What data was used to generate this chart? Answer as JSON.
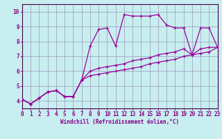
{
  "xlabel": "Windchill (Refroidissement éolien,°C)",
  "bg_color": "#c8eef0",
  "line_color": "#990099",
  "grid_color": "#9999bb",
  "hours": [
    0,
    1,
    2,
    3,
    4,
    5,
    6,
    7,
    8,
    9,
    10,
    11,
    12,
    13,
    14,
    15,
    16,
    17,
    18,
    19,
    20,
    21,
    22,
    23
  ],
  "line1": [
    4.1,
    3.8,
    4.2,
    4.6,
    4.7,
    4.3,
    4.3,
    5.4,
    7.7,
    8.8,
    8.9,
    7.7,
    9.8,
    9.7,
    9.7,
    9.7,
    9.8,
    9.1,
    8.9,
    8.9,
    7.1,
    8.9,
    8.9,
    7.6
  ],
  "line2": [
    4.1,
    3.8,
    4.2,
    4.6,
    4.7,
    4.3,
    4.3,
    5.4,
    6.0,
    6.2,
    6.3,
    6.4,
    6.5,
    6.7,
    6.8,
    6.9,
    7.1,
    7.2,
    7.3,
    7.5,
    7.1,
    7.5,
    7.6,
    7.6
  ],
  "line3": [
    4.1,
    3.8,
    4.2,
    4.6,
    4.7,
    4.3,
    4.3,
    5.4,
    5.7,
    5.8,
    5.9,
    6.0,
    6.1,
    6.2,
    6.3,
    6.5,
    6.6,
    6.7,
    6.8,
    7.0,
    7.1,
    7.2,
    7.3,
    7.6
  ],
  "ylim": [
    3.5,
    10.5
  ],
  "xlim": [
    0,
    23
  ],
  "yticks": [
    4,
    5,
    6,
    7,
    8,
    9,
    10
  ],
  "xticks": [
    0,
    1,
    2,
    3,
    4,
    5,
    6,
    7,
    8,
    9,
    10,
    11,
    12,
    13,
    14,
    15,
    16,
    17,
    18,
    19,
    20,
    21,
    22,
    23
  ],
  "tick_color": "#880088",
  "spine_color": "#440044",
  "label_fontsize": 5.5,
  "xlabel_fontsize": 5.5
}
